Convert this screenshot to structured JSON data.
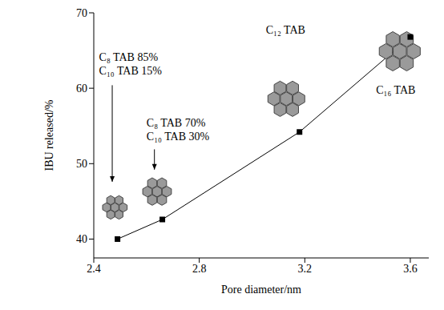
{
  "chart_data": {
    "type": "line",
    "x_label": "Pore diameter/nm",
    "y_label": "IBU released/%",
    "x": [
      2.49,
      2.66,
      3.18,
      3.6
    ],
    "values": [
      40,
      42.6,
      54.2,
      66.8
    ],
    "color": "#000000",
    "marker": "square",
    "xlim": [
      2.4,
      3.67
    ],
    "xticks": [
      2.4,
      2.8,
      3.2,
      3.6
    ],
    "ylim": [
      37.5,
      70
    ],
    "yticks": [
      40,
      50,
      60,
      70
    ],
    "grid": false,
    "annotations": [
      [
        "C₈ TAB 85%",
        "C₁₀ TAB 15%"
      ],
      [
        "C₈ TAB 70%",
        "C₁₀ TAB 30%"
      ],
      [
        "C₁₂ TAB"
      ],
      [
        "C₁₆ TAB"
      ]
    ]
  }
}
